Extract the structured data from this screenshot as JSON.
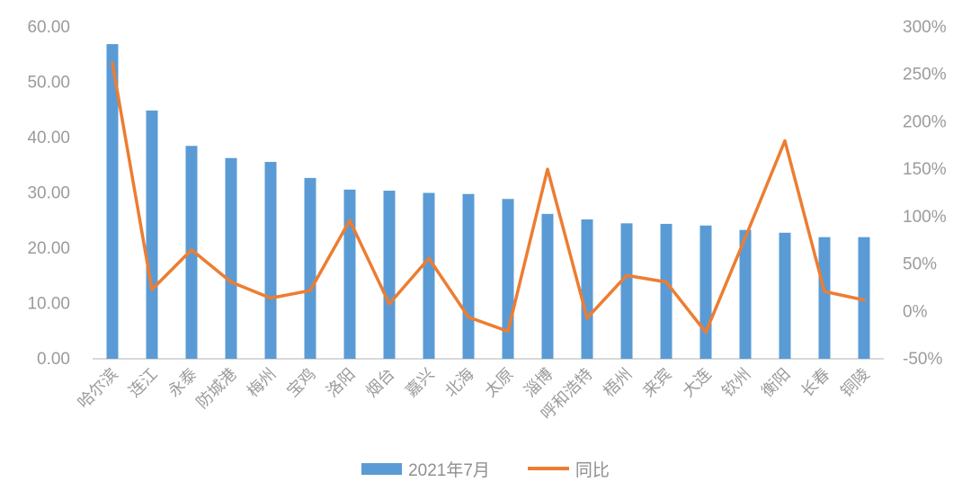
{
  "chart_data": {
    "type": "bar",
    "subtype": "combo-bar-line-dual-axis",
    "title": "",
    "xlabel": "",
    "ylabel": "",
    "grid": false,
    "legend_position": "bottom",
    "categories": [
      "哈尔滨",
      "连江",
      "永泰",
      "防城港",
      "梅州",
      "宝鸡",
      "洛阳",
      "烟台",
      "嘉兴",
      "北海",
      "太原",
      "淄博",
      "呼和浩特",
      "梧州",
      "来宾",
      "大连",
      "钦州",
      "衡阳",
      "长春",
      "铜陵"
    ],
    "series": [
      {
        "name": "2021年7月",
        "type": "bar",
        "axis": "left",
        "color": "#5B9BD5",
        "values": [
          56.9,
          44.9,
          38.5,
          36.3,
          35.6,
          32.7,
          30.6,
          30.4,
          30.0,
          29.8,
          28.9,
          26.2,
          25.2,
          24.5,
          24.4,
          24.1,
          23.3,
          22.8,
          22.0,
          22.0
        ]
      },
      {
        "name": "同比",
        "type": "line",
        "axis": "right",
        "color": "#ED7D31",
        "values": [
          262,
          23,
          65,
          31,
          14,
          22,
          96,
          8,
          56,
          -6,
          -21,
          150,
          -7,
          38,
          31,
          -22,
          78,
          180,
          21,
          12
        ]
      }
    ],
    "left_axis": {
      "min": 0,
      "max": 60,
      "step": 10,
      "tick_labels": [
        "0.00",
        "10.00",
        "20.00",
        "30.00",
        "40.00",
        "50.00",
        "60.00"
      ]
    },
    "right_axis": {
      "min": -50,
      "max": 300,
      "step": 50,
      "tick_labels": [
        "-50%",
        "0%",
        "50%",
        "100%",
        "150%",
        "200%",
        "250%",
        "300%"
      ]
    }
  },
  "colors": {
    "bar": "#5B9BD5",
    "line": "#ED7D31",
    "axis_text": "#9b9b9b",
    "baseline": "#d9d9d9",
    "background": "#ffffff"
  }
}
